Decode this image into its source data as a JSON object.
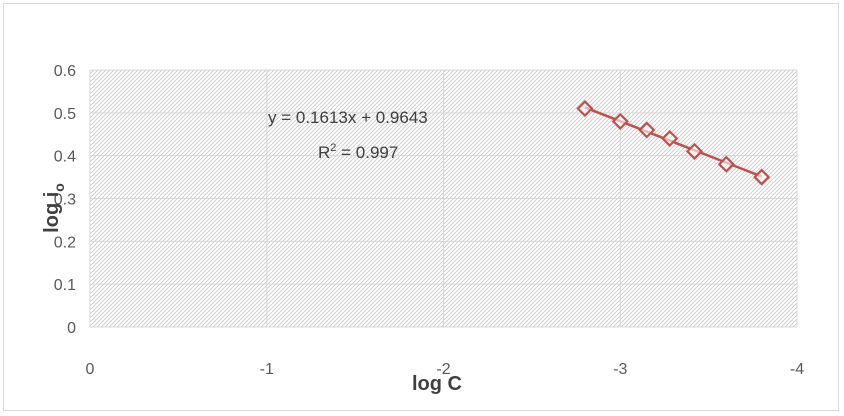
{
  "chart_data": {
    "type": "scatter",
    "title": "",
    "xlabel": "log C",
    "ylabel_main": "log i",
    "ylabel_sub": "o",
    "xlim": [
      0,
      -4
    ],
    "ylim": [
      0,
      0.6
    ],
    "xticks": [
      "0",
      "-1",
      "-2",
      "-3",
      "-4"
    ],
    "yticks": [
      "0",
      "0.1",
      "0.2",
      "0.3",
      "0.4",
      "0.5",
      "0.6"
    ],
    "grid": true,
    "series": [
      {
        "marker": "diamond",
        "color": "#c0504d",
        "points": [
          {
            "x": -2.8,
            "y": 0.51
          },
          {
            "x": -3.0,
            "y": 0.48
          },
          {
            "x": -3.15,
            "y": 0.46
          },
          {
            "x": -3.28,
            "y": 0.44
          },
          {
            "x": -3.42,
            "y": 0.41
          },
          {
            "x": -3.6,
            "y": 0.38
          },
          {
            "x": -3.8,
            "y": 0.35
          }
        ]
      }
    ],
    "trendline": {
      "type": "linear",
      "slope": 0.1613,
      "intercept": 0.9643,
      "x_range": [
        -2.8,
        -3.8
      ],
      "color": "#c0504d"
    },
    "annotations": {
      "equation": "y = 0.1613x + 0.9643",
      "r2_main": "R",
      "r2_sup": "2",
      "r2_value": " = 0.997"
    }
  }
}
